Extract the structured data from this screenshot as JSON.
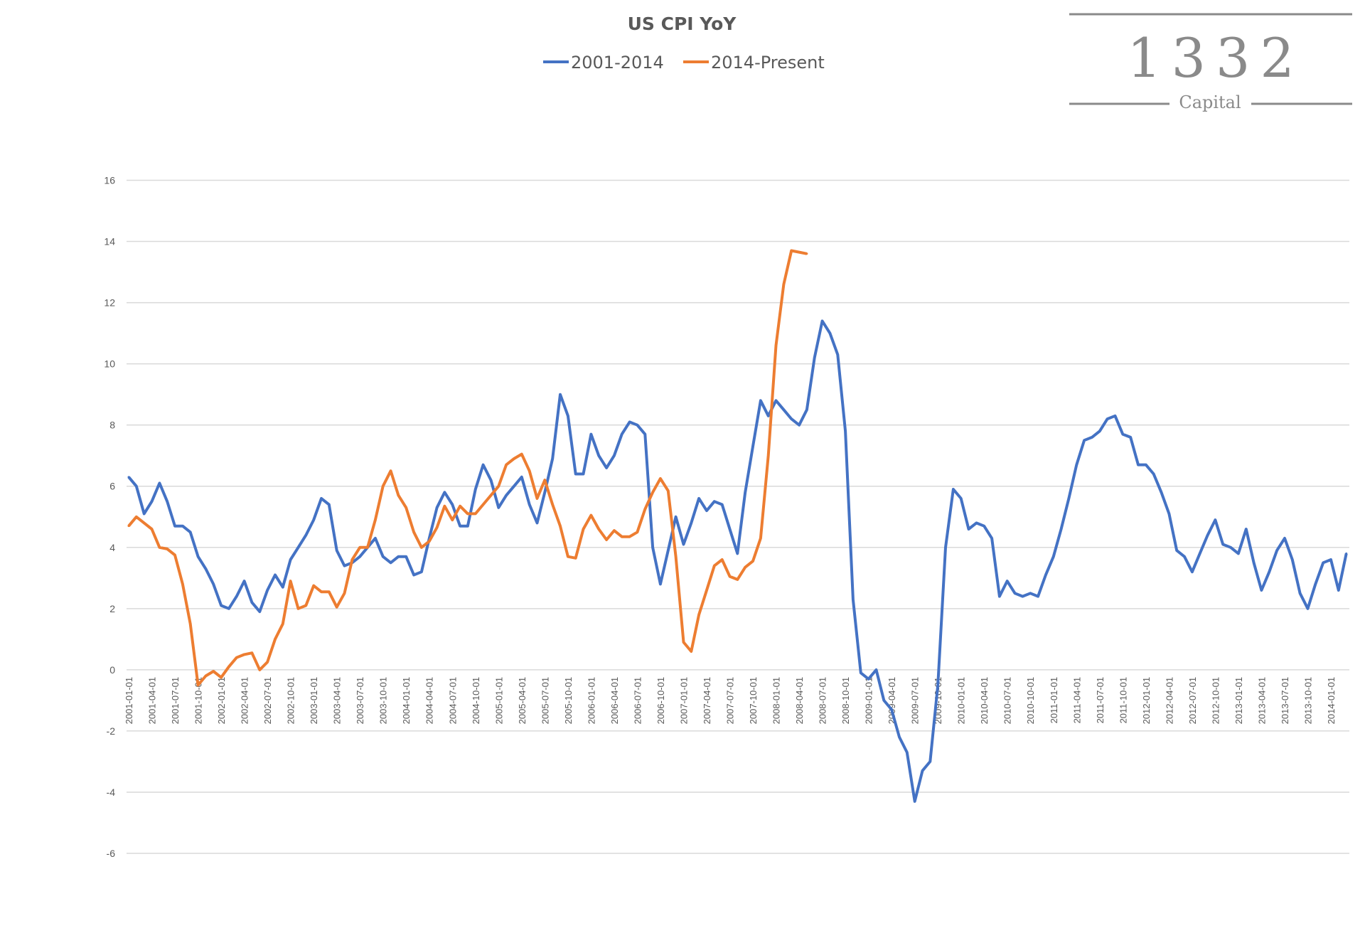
{
  "logo": {
    "number": "1332",
    "name": "Capital"
  },
  "chart_data": {
    "type": "line",
    "title": "US CPI YoY",
    "xlabel": "",
    "ylabel": "",
    "ylim": [
      -6,
      16
    ],
    "y_ticks": [
      -6,
      -4,
      -2,
      0,
      2,
      4,
      6,
      8,
      10,
      12,
      14,
      16
    ],
    "grid": true,
    "legend_position": "top",
    "x_tick_labels": [
      "2001-01-01",
      "2001-04-01",
      "2001-07-01",
      "2001-10-01",
      "2002-01-01",
      "2002-04-01",
      "2002-07-01",
      "2002-10-01",
      "2003-01-01",
      "2003-04-01",
      "2003-07-01",
      "2003-10-01",
      "2004-01-01",
      "2004-04-01",
      "2004-07-01",
      "2004-10-01",
      "2005-01-01",
      "2005-04-01",
      "2005-07-01",
      "2005-10-01",
      "2006-01-01",
      "2006-04-01",
      "2006-07-01",
      "2006-10-01",
      "2007-01-01",
      "2007-04-01",
      "2007-07-01",
      "2007-10-01",
      "2008-01-01",
      "2008-04-01",
      "2008-07-01",
      "2008-10-01",
      "2009-01-01",
      "2009-04-01",
      "2009-07-01",
      "2009-10-01",
      "2010-01-01",
      "2010-04-01",
      "2010-07-01",
      "2010-10-01",
      "2011-01-01",
      "2011-04-01",
      "2011-07-01",
      "2011-10-01",
      "2012-01-01",
      "2012-04-01",
      "2012-07-01",
      "2012-10-01",
      "2013-01-01",
      "2013-04-01",
      "2013-07-01",
      "2013-10-01",
      "2014-01-01"
    ],
    "series": [
      {
        "name": "2001-2014",
        "color": "#4472C4",
        "values": [
          6.3,
          6.0,
          5.1,
          5.5,
          6.1,
          5.5,
          4.7,
          4.7,
          4.5,
          3.7,
          3.3,
          2.8,
          2.1,
          2.0,
          2.4,
          2.9,
          2.2,
          1.9,
          2.6,
          3.1,
          2.7,
          3.6,
          4.0,
          4.4,
          4.9,
          5.6,
          5.4,
          3.9,
          3.4,
          3.5,
          3.7,
          4.0,
          4.3,
          3.7,
          3.5,
          3.7,
          3.7,
          3.1,
          3.2,
          4.3,
          5.3,
          5.8,
          5.4,
          4.7,
          4.7,
          5.9,
          6.7,
          6.2,
          5.3,
          5.7,
          6.0,
          6.3,
          5.4,
          4.8,
          5.8,
          6.9,
          9.0,
          8.3,
          6.4,
          6.4,
          7.7,
          7.0,
          6.6,
          7.0,
          7.7,
          8.1,
          8.0,
          7.7,
          4.0,
          2.8,
          3.9,
          5.0,
          4.1,
          4.8,
          5.6,
          5.2,
          5.5,
          5.4,
          4.6,
          3.8,
          5.8,
          7.3,
          8.8,
          8.3,
          8.8,
          8.5,
          8.2,
          8.0,
          8.5,
          10.2,
          11.4,
          11.0,
          10.3,
          7.8,
          2.3,
          -0.1,
          -0.3,
          0.0,
          -1.0,
          -1.3,
          -2.2,
          -2.7,
          -4.3,
          -3.3,
          -3.0,
          -0.5,
          4.0,
          5.9,
          5.6,
          4.6,
          4.8,
          4.7,
          4.3,
          2.4,
          2.9,
          2.5,
          2.4,
          2.5,
          2.4,
          3.1,
          3.7,
          4.6,
          5.6,
          6.7,
          7.5,
          7.6,
          7.8,
          8.2,
          8.3,
          7.7,
          7.6,
          6.7,
          6.7,
          6.4,
          5.8,
          5.1,
          3.9,
          3.7,
          3.2,
          3.8,
          4.4,
          4.9,
          4.1,
          4.0,
          3.8,
          4.6,
          3.5,
          2.6,
          3.2,
          3.9,
          4.3,
          3.6,
          2.5,
          2.0,
          2.8,
          3.5,
          3.6,
          2.6,
          3.8
        ]
      },
      {
        "name": "2014-Present",
        "color": "#ED7D31",
        "values": [
          4.7,
          5.0,
          4.8,
          4.6,
          4.0,
          3.95,
          3.75,
          2.8,
          1.5,
          -0.5,
          -0.2,
          -0.05,
          -0.25,
          0.1,
          0.4,
          0.5,
          0.55,
          0.0,
          0.25,
          1.0,
          1.5,
          2.9,
          2.0,
          2.1,
          2.75,
          2.55,
          2.55,
          2.05,
          2.5,
          3.6,
          4.0,
          4.0,
          4.9,
          6.0,
          6.5,
          5.7,
          5.3,
          4.5,
          4.0,
          4.2,
          4.65,
          5.35,
          4.9,
          5.35,
          5.1,
          5.1,
          5.4,
          5.7,
          6.0,
          6.7,
          6.9,
          7.05,
          6.5,
          5.6,
          6.2,
          5.4,
          4.7,
          3.7,
          3.65,
          4.6,
          5.05,
          4.6,
          4.25,
          4.55,
          4.35,
          4.35,
          4.5,
          5.25,
          5.8,
          6.25,
          5.85,
          3.7,
          0.9,
          0.6,
          1.8,
          2.6,
          3.4,
          3.6,
          3.05,
          2.95,
          3.35,
          3.55,
          4.3,
          7.0,
          10.6,
          12.6,
          13.7,
          13.65,
          13.6
        ]
      }
    ]
  }
}
